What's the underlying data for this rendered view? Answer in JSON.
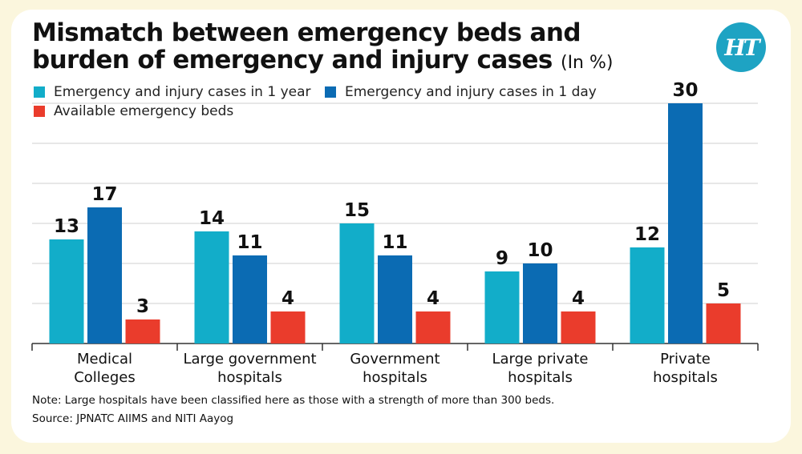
{
  "header": {
    "title": "Mismatch between emergency beds and burden of emergency and injury cases",
    "title_unit": "(In %)",
    "logo_text": "HT",
    "logo_color": "#1ea3c3"
  },
  "footer": {
    "note": "Note: Large hospitals have been classified here as those with a strength of more than 300 beds.",
    "source": "Source: JPNATC AIIMS and NITI Aayog"
  },
  "chart_data": {
    "type": "bar",
    "title": "Mismatch between emergency beds and burden of emergency and injury cases (In %)",
    "xlabel": "",
    "ylabel": "",
    "ylim": [
      0,
      30
    ],
    "grid": true,
    "legend_position": "top-left",
    "categories": [
      [
        "Medical",
        "Colleges"
      ],
      [
        "Large government",
        "hospitals"
      ],
      [
        "Government",
        "hospitals"
      ],
      [
        "Large private",
        "hospitals"
      ],
      [
        "Private",
        "hospitals"
      ]
    ],
    "series": [
      {
        "name": "Emergency and injury cases in 1 year",
        "color": "#12adc9",
        "values": [
          13,
          14,
          15,
          9,
          12
        ]
      },
      {
        "name": "Emergency and injury cases in 1 day",
        "color": "#0b6bb3",
        "values": [
          17,
          11,
          11,
          10,
          30
        ]
      },
      {
        "name": "Available emergency beds",
        "color": "#ea3c2c",
        "values": [
          3,
          4,
          4,
          4,
          5
        ]
      }
    ]
  }
}
